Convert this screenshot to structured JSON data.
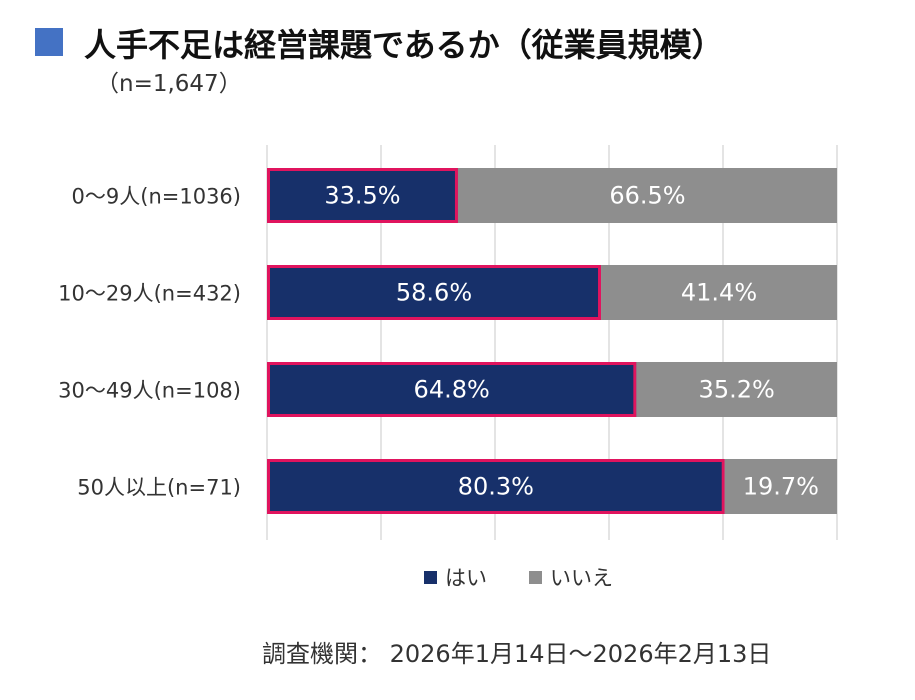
{
  "title": "人手不足は経営課題であるか（従業員規模）",
  "subtitle": "（n=1,647）",
  "footer": "調査機関： 2026年1月14日～2026年2月13日",
  "colors": {
    "yes": "#17306a",
    "no": "#8e8e8e",
    "highlight": "#e0145e",
    "title_marker": "#4472c4"
  },
  "chart_data": {
    "type": "bar",
    "orientation": "horizontal",
    "stacked": true,
    "percent": true,
    "categories": [
      "0～9人(n=1036)",
      "10～29人(n=432)",
      "30～49人(n=108)",
      "50人以上(n=71)"
    ],
    "series": [
      {
        "name": "はい",
        "values": [
          33.5,
          58.6,
          64.8,
          80.3
        ],
        "labels": [
          "33.5%",
          "58.6%",
          "64.8%",
          "80.3%"
        ]
      },
      {
        "name": "いいえ",
        "values": [
          66.5,
          41.4,
          35.2,
          19.7
        ],
        "labels": [
          "66.5%",
          "41.4%",
          "35.2%",
          "19.7%"
        ]
      }
    ],
    "xlim": [
      0,
      100
    ],
    "grid": true,
    "legend": "bottom",
    "highlighted_series": "はい"
  }
}
